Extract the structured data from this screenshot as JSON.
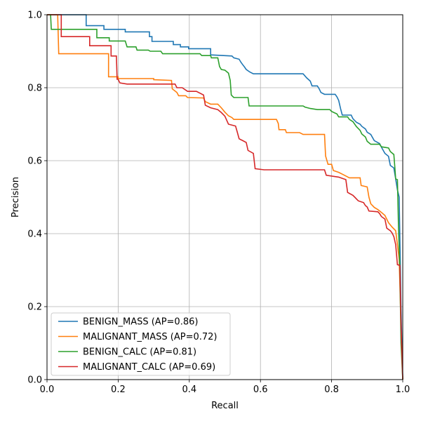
{
  "chart_data": {
    "type": "line",
    "title": "",
    "xlabel": "Recall",
    "ylabel": "Precision",
    "xlim": [
      0,
      1
    ],
    "ylim": [
      0,
      1
    ],
    "grid": true,
    "legend_position": "lower-left",
    "xticks": [
      "0.0",
      "0.2",
      "0.4",
      "0.6",
      "0.8",
      "1.0"
    ],
    "yticks": [
      "0.0",
      "0.2",
      "0.4",
      "0.6",
      "0.8",
      "1.0"
    ],
    "series": [
      {
        "name": "BENIGN_MASS (AP=0.86)",
        "color": "#1f77b4",
        "points": [
          [
            0,
            1.0
          ],
          [
            0.11,
            1.0
          ],
          [
            0.11,
            0.97
          ],
          [
            0.16,
            0.97
          ],
          [
            0.16,
            0.96
          ],
          [
            0.22,
            0.96
          ],
          [
            0.22,
            0.953
          ],
          [
            0.288,
            0.953
          ],
          [
            0.288,
            0.94
          ],
          [
            0.295,
            0.94
          ],
          [
            0.295,
            0.927
          ],
          [
            0.355,
            0.927
          ],
          [
            0.355,
            0.918
          ],
          [
            0.375,
            0.918
          ],
          [
            0.375,
            0.912
          ],
          [
            0.398,
            0.912
          ],
          [
            0.398,
            0.907
          ],
          [
            0.46,
            0.907
          ],
          [
            0.46,
            0.89
          ],
          [
            0.52,
            0.887
          ],
          [
            0.525,
            0.882
          ],
          [
            0.54,
            0.878
          ],
          [
            0.545,
            0.87
          ],
          [
            0.55,
            0.863
          ],
          [
            0.555,
            0.857
          ],
          [
            0.56,
            0.85
          ],
          [
            0.57,
            0.843
          ],
          [
            0.58,
            0.838
          ],
          [
            0.72,
            0.838
          ],
          [
            0.73,
            0.827
          ],
          [
            0.74,
            0.818
          ],
          [
            0.745,
            0.805
          ],
          [
            0.76,
            0.805
          ],
          [
            0.765,
            0.797
          ],
          [
            0.77,
            0.787
          ],
          [
            0.78,
            0.782
          ],
          [
            0.81,
            0.782
          ],
          [
            0.815,
            0.775
          ],
          [
            0.82,
            0.765
          ],
          [
            0.825,
            0.743
          ],
          [
            0.83,
            0.725
          ],
          [
            0.855,
            0.725
          ],
          [
            0.86,
            0.715
          ],
          [
            0.87,
            0.705
          ],
          [
            0.88,
            0.7
          ],
          [
            0.885,
            0.694
          ],
          [
            0.895,
            0.687
          ],
          [
            0.9,
            0.678
          ],
          [
            0.91,
            0.672
          ],
          [
            0.92,
            0.655
          ],
          [
            0.935,
            0.647
          ],
          [
            0.94,
            0.637
          ],
          [
            0.95,
            0.62
          ],
          [
            0.96,
            0.612
          ],
          [
            0.965,
            0.587
          ],
          [
            0.975,
            0.58
          ],
          [
            0.98,
            0.55
          ],
          [
            0.985,
            0.52
          ],
          [
            0.99,
            0.5
          ],
          [
            0.995,
            0.2
          ],
          [
            1.0,
            0.0
          ]
        ]
      },
      {
        "name": "MALIGNANT_MASS (AP=0.72)",
        "color": "#ff7f0e",
        "points": [
          [
            0,
            1.0
          ],
          [
            0.03,
            1.0
          ],
          [
            0.033,
            0.893
          ],
          [
            0.173,
            0.893
          ],
          [
            0.173,
            0.83
          ],
          [
            0.2,
            0.83
          ],
          [
            0.2,
            0.825
          ],
          [
            0.3,
            0.825
          ],
          [
            0.3,
            0.822
          ],
          [
            0.35,
            0.82
          ],
          [
            0.352,
            0.797
          ],
          [
            0.365,
            0.787
          ],
          [
            0.37,
            0.778
          ],
          [
            0.39,
            0.778
          ],
          [
            0.395,
            0.773
          ],
          [
            0.44,
            0.772
          ],
          [
            0.445,
            0.762
          ],
          [
            0.46,
            0.755
          ],
          [
            0.48,
            0.755
          ],
          [
            0.49,
            0.745
          ],
          [
            0.5,
            0.733
          ],
          [
            0.51,
            0.723
          ],
          [
            0.52,
            0.718
          ],
          [
            0.525,
            0.713
          ],
          [
            0.645,
            0.713
          ],
          [
            0.65,
            0.702
          ],
          [
            0.652,
            0.685
          ],
          [
            0.67,
            0.685
          ],
          [
            0.673,
            0.677
          ],
          [
            0.71,
            0.677
          ],
          [
            0.72,
            0.672
          ],
          [
            0.78,
            0.672
          ],
          [
            0.783,
            0.613
          ],
          [
            0.79,
            0.59
          ],
          [
            0.8,
            0.59
          ],
          [
            0.805,
            0.573
          ],
          [
            0.82,
            0.568
          ],
          [
            0.83,
            0.563
          ],
          [
            0.84,
            0.558
          ],
          [
            0.85,
            0.553
          ],
          [
            0.88,
            0.553
          ],
          [
            0.883,
            0.532
          ],
          [
            0.9,
            0.528
          ],
          [
            0.905,
            0.5
          ],
          [
            0.91,
            0.482
          ],
          [
            0.92,
            0.472
          ],
          [
            0.93,
            0.466
          ],
          [
            0.94,
            0.458
          ],
          [
            0.95,
            0.45
          ],
          [
            0.96,
            0.43
          ],
          [
            0.97,
            0.418
          ],
          [
            0.98,
            0.408
          ],
          [
            0.985,
            0.37
          ],
          [
            0.99,
            0.33
          ],
          [
            0.995,
            0.15
          ],
          [
            1.0,
            0.0
          ]
        ]
      },
      {
        "name": "BENIGN_CALC (AP=0.81)",
        "color": "#2ca02c",
        "points": [
          [
            0,
            1.0
          ],
          [
            0.01,
            1.0
          ],
          [
            0.012,
            0.96
          ],
          [
            0.14,
            0.96
          ],
          [
            0.14,
            0.937
          ],
          [
            0.175,
            0.937
          ],
          [
            0.175,
            0.928
          ],
          [
            0.22,
            0.928
          ],
          [
            0.225,
            0.912
          ],
          [
            0.25,
            0.912
          ],
          [
            0.253,
            0.903
          ],
          [
            0.285,
            0.903
          ],
          [
            0.29,
            0.9
          ],
          [
            0.32,
            0.9
          ],
          [
            0.325,
            0.893
          ],
          [
            0.43,
            0.893
          ],
          [
            0.435,
            0.888
          ],
          [
            0.46,
            0.888
          ],
          [
            0.462,
            0.882
          ],
          [
            0.48,
            0.882
          ],
          [
            0.485,
            0.858
          ],
          [
            0.49,
            0.85
          ],
          [
            0.5,
            0.848
          ],
          [
            0.51,
            0.84
          ],
          [
            0.515,
            0.82
          ],
          [
            0.518,
            0.78
          ],
          [
            0.525,
            0.773
          ],
          [
            0.565,
            0.773
          ],
          [
            0.568,
            0.75
          ],
          [
            0.72,
            0.75
          ],
          [
            0.725,
            0.747
          ],
          [
            0.74,
            0.743
          ],
          [
            0.76,
            0.74
          ],
          [
            0.795,
            0.74
          ],
          [
            0.8,
            0.735
          ],
          [
            0.815,
            0.728
          ],
          [
            0.82,
            0.72
          ],
          [
            0.845,
            0.72
          ],
          [
            0.85,
            0.713
          ],
          [
            0.86,
            0.707
          ],
          [
            0.87,
            0.693
          ],
          [
            0.88,
            0.683
          ],
          [
            0.885,
            0.673
          ],
          [
            0.895,
            0.665
          ],
          [
            0.9,
            0.653
          ],
          [
            0.91,
            0.645
          ],
          [
            0.935,
            0.645
          ],
          [
            0.94,
            0.638
          ],
          [
            0.96,
            0.635
          ],
          [
            0.965,
            0.625
          ],
          [
            0.975,
            0.617
          ],
          [
            0.978,
            0.58
          ],
          [
            0.98,
            0.55
          ],
          [
            0.985,
            0.548
          ],
          [
            0.988,
            0.42
          ],
          [
            0.992,
            0.3
          ],
          [
            0.995,
            0.1
          ],
          [
            1.0,
            0.0
          ]
        ]
      },
      {
        "name": "MALIGNANT_CALC (AP=0.69)",
        "color": "#d62728",
        "points": [
          [
            0,
            1.0
          ],
          [
            0.04,
            1.0
          ],
          [
            0.04,
            0.94
          ],
          [
            0.12,
            0.94
          ],
          [
            0.12,
            0.915
          ],
          [
            0.18,
            0.915
          ],
          [
            0.18,
            0.887
          ],
          [
            0.195,
            0.887
          ],
          [
            0.197,
            0.823
          ],
          [
            0.2,
            0.823
          ],
          [
            0.205,
            0.813
          ],
          [
            0.225,
            0.81
          ],
          [
            0.36,
            0.81
          ],
          [
            0.365,
            0.8
          ],
          [
            0.38,
            0.8
          ],
          [
            0.395,
            0.79
          ],
          [
            0.42,
            0.79
          ],
          [
            0.44,
            0.78
          ],
          [
            0.445,
            0.752
          ],
          [
            0.46,
            0.745
          ],
          [
            0.48,
            0.74
          ],
          [
            0.49,
            0.732
          ],
          [
            0.5,
            0.722
          ],
          [
            0.51,
            0.7
          ],
          [
            0.53,
            0.695
          ],
          [
            0.535,
            0.678
          ],
          [
            0.54,
            0.66
          ],
          [
            0.55,
            0.655
          ],
          [
            0.56,
            0.65
          ],
          [
            0.565,
            0.628
          ],
          [
            0.58,
            0.62
          ],
          [
            0.585,
            0.578
          ],
          [
            0.61,
            0.575
          ],
          [
            0.78,
            0.575
          ],
          [
            0.785,
            0.56
          ],
          [
            0.82,
            0.555
          ],
          [
            0.84,
            0.548
          ],
          [
            0.845,
            0.513
          ],
          [
            0.86,
            0.505
          ],
          [
            0.865,
            0.5
          ],
          [
            0.875,
            0.49
          ],
          [
            0.89,
            0.485
          ],
          [
            0.895,
            0.477
          ],
          [
            0.9,
            0.473
          ],
          [
            0.905,
            0.462
          ],
          [
            0.93,
            0.46
          ],
          [
            0.935,
            0.455
          ],
          [
            0.94,
            0.447
          ],
          [
            0.95,
            0.44
          ],
          [
            0.955,
            0.415
          ],
          [
            0.965,
            0.408
          ],
          [
            0.97,
            0.402
          ],
          [
            0.975,
            0.392
          ],
          [
            0.98,
            0.37
          ],
          [
            0.985,
            0.315
          ],
          [
            0.992,
            0.313
          ],
          [
            0.995,
            0.15
          ],
          [
            1.0,
            0.0
          ]
        ]
      }
    ]
  }
}
